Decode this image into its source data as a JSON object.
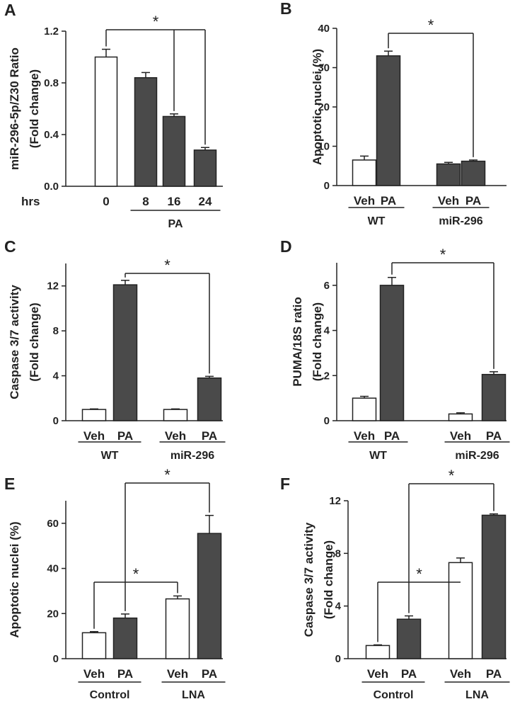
{
  "chart_data": [
    {
      "panel": "A",
      "type": "bar",
      "ylabel_lines": [
        "miR-296-5p/Z30 Ratio",
        "(Fold change)"
      ],
      "yticks": [
        "0.0",
        "0.4",
        "0.8",
        "1.2"
      ],
      "ylim": [
        0,
        1.2
      ],
      "xlabel_prefix": "hrs",
      "categories": [
        "0",
        "8",
        "16",
        "24"
      ],
      "values": [
        1.0,
        0.84,
        0.54,
        0.28
      ],
      "errors": [
        0.06,
        0.04,
        0.02,
        0.02
      ],
      "fills": [
        "white",
        "dark",
        "dark",
        "dark"
      ],
      "groups": [
        {
          "label": "PA",
          "from": 1,
          "to": 3
        }
      ],
      "significance": [
        {
          "from": 0,
          "to": [
            2,
            3
          ],
          "label": "*"
        }
      ]
    },
    {
      "panel": "B",
      "type": "bar",
      "ylabel_lines": [
        "Apoptotic nuclei (%)"
      ],
      "yticks": [
        "0",
        "10",
        "20",
        "30",
        "40"
      ],
      "ylim": [
        0,
        40
      ],
      "categories": [
        "Veh",
        "PA",
        "Veh",
        "PA"
      ],
      "values": [
        6.5,
        33,
        5.5,
        6.2
      ],
      "errors": [
        1.0,
        1.2,
        0.4,
        0.3
      ],
      "fills": [
        "white",
        "dark",
        "dark",
        "dark"
      ],
      "groups": [
        {
          "label": "WT",
          "from": 0,
          "to": 1
        },
        {
          "label": "miR-296",
          "from": 2,
          "to": 3
        }
      ],
      "significance": [
        {
          "from": 1,
          "to": [
            3
          ],
          "label": "*"
        }
      ]
    },
    {
      "panel": "C",
      "type": "bar",
      "ylabel_lines": [
        "Caspase 3/7 activity",
        "(Fold change)"
      ],
      "yticks": [
        "0",
        "4",
        "8",
        "12"
      ],
      "ylim": [
        0,
        14
      ],
      "categories": [
        "Veh",
        "PA",
        "Veh",
        "PA"
      ],
      "values": [
        1.0,
        12.1,
        1.0,
        3.8
      ],
      "errors": [
        0.05,
        0.4,
        0.05,
        0.15
      ],
      "fills": [
        "white",
        "dark",
        "white",
        "dark"
      ],
      "groups": [
        {
          "label": "WT",
          "from": 0,
          "to": 1
        },
        {
          "label": "miR-296",
          "from": 2,
          "to": 3
        }
      ],
      "significance": [
        {
          "from": 1,
          "to": [
            3
          ],
          "label": "*"
        }
      ]
    },
    {
      "panel": "D",
      "type": "bar",
      "ylabel_lines": [
        "PUMA/18S ratio",
        "(Fold  change)"
      ],
      "yticks": [
        "0",
        "2",
        "4",
        "6"
      ],
      "ylim": [
        0,
        7
      ],
      "categories": [
        "Veh",
        "PA",
        "Veh",
        "PA"
      ],
      "values": [
        1.0,
        6.0,
        0.3,
        2.05
      ],
      "errors": [
        0.08,
        0.35,
        0.05,
        0.12
      ],
      "fills": [
        "white",
        "dark",
        "white",
        "dark"
      ],
      "groups": [
        {
          "label": "WT",
          "from": 0,
          "to": 1
        },
        {
          "label": "miR-296",
          "from": 2,
          "to": 3
        }
      ],
      "significance": [
        {
          "from": 1,
          "to": [
            3
          ],
          "label": "*"
        }
      ]
    },
    {
      "panel": "E",
      "type": "bar",
      "ylabel_lines": [
        "Apoptotic nuclei (%)"
      ],
      "yticks": [
        "0",
        "20",
        "40",
        "60"
      ],
      "ylim": [
        0,
        70
      ],
      "categories": [
        "Veh",
        "PA",
        "Veh",
        "PA"
      ],
      "values": [
        11.5,
        18,
        26.5,
        55.5
      ],
      "errors": [
        0.5,
        1.8,
        1.3,
        8.0
      ],
      "fills": [
        "white",
        "dark",
        "white",
        "dark"
      ],
      "groups": [
        {
          "label": "Control",
          "from": 0,
          "to": 1
        },
        {
          "label": "LNA",
          "from": 2,
          "to": 3
        }
      ],
      "significance": [
        {
          "from": 1,
          "to": [
            3
          ],
          "label": "*"
        },
        {
          "from": 0,
          "to": [
            2
          ],
          "label": "*"
        }
      ]
    },
    {
      "panel": "F",
      "type": "bar",
      "ylabel_lines": [
        "Caspase 3/7 activity",
        "(Fold change)"
      ],
      "yticks": [
        "0",
        "4",
        "8",
        "12"
      ],
      "ylim": [
        0,
        12
      ],
      "categories": [
        "Veh",
        "PA",
        "Veh",
        "PA"
      ],
      "values": [
        1.0,
        3.0,
        7.3,
        10.9
      ],
      "errors": [
        0.05,
        0.25,
        0.35,
        0.1
      ],
      "fills": [
        "white",
        "dark",
        "white",
        "dark"
      ],
      "groups": [
        {
          "label": "Control",
          "from": 0,
          "to": 1
        },
        {
          "label": "LNA",
          "from": 2,
          "to": 3
        }
      ],
      "significance": [
        {
          "from": 1,
          "to": [
            3
          ],
          "label": "*"
        },
        {
          "from": 0,
          "to": [
            2
          ],
          "label": "*"
        }
      ]
    }
  ],
  "colors": {
    "dark_bar": "#4a4a4a",
    "light_bar": "#ffffff",
    "ink": "#222222"
  }
}
